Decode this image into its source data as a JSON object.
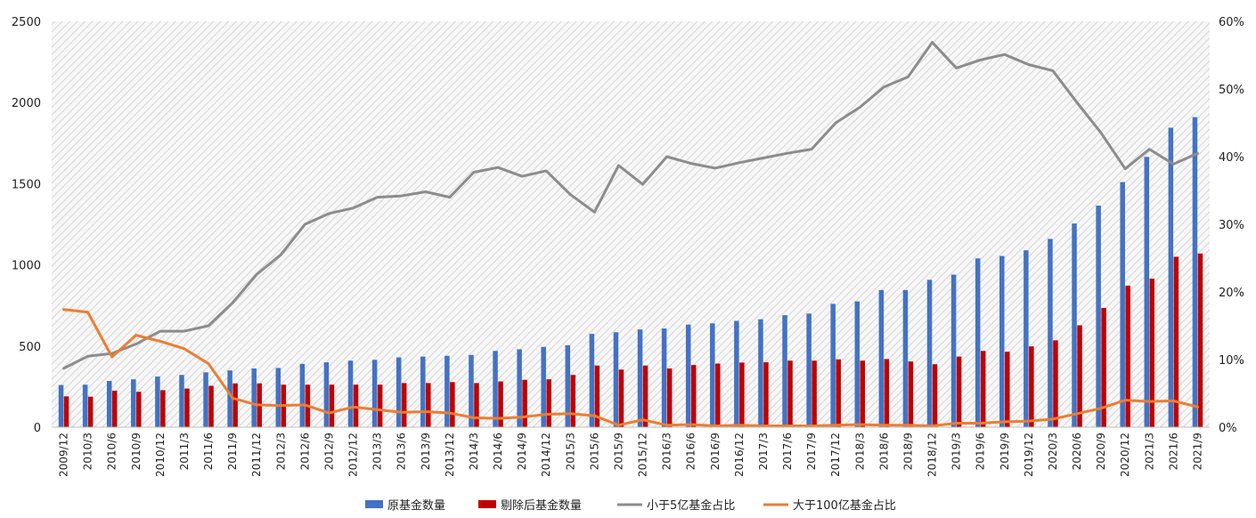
{
  "chart_data": {
    "type": "bar",
    "categories": [
      "2009/12",
      "2010/3",
      "2010/6",
      "2010/9",
      "2010/12",
      "2011/3",
      "2011/6",
      "2011/9",
      "2011/12",
      "2012/3",
      "2012/6",
      "2012/9",
      "2012/12",
      "2013/3",
      "2013/6",
      "2013/9",
      "2013/12",
      "2014/3",
      "2014/6",
      "2014/9",
      "2014/12",
      "2015/3",
      "2015/6",
      "2015/9",
      "2015/12",
      "2016/3",
      "2016/6",
      "2016/9",
      "2016/12",
      "2017/3",
      "2017/6",
      "2017/9",
      "2017/12",
      "2018/3",
      "2018/6",
      "2018/9",
      "2018/12",
      "2019/3",
      "2019/6",
      "2019/9",
      "2019/12",
      "2020/3",
      "2020/6",
      "2020/9",
      "2020/12",
      "2021/3",
      "2021/6",
      "2021/9"
    ],
    "ylim_left": [
      0,
      2500
    ],
    "yticks_left": [
      "0",
      "500",
      "1000",
      "1500",
      "2000",
      "2500"
    ],
    "ylim_right": [
      0,
      60
    ],
    "yticks_right": [
      "0%",
      "10%",
      "20%",
      "30%",
      "40%",
      "50%",
      "60%"
    ],
    "grid": false,
    "legend_position": "bottom",
    "series": [
      {
        "name": "原基金数量",
        "type": "bar",
        "axis": "left",
        "color": "#4472C4",
        "values": [
          260,
          262,
          285,
          295,
          312,
          322,
          338,
          350,
          362,
          365,
          390,
          400,
          410,
          415,
          430,
          435,
          440,
          445,
          470,
          480,
          495,
          505,
          575,
          585,
          602,
          608,
          632,
          640,
          655,
          665,
          690,
          700,
          760,
          775,
          845,
          845,
          908,
          940,
          1040,
          1055,
          1090,
          1160,
          1255,
          1365,
          1510,
          1665,
          1845,
          1910
        ]
      },
      {
        "name": "剔除后基金数量",
        "type": "bar",
        "axis": "left",
        "color": "#C00000",
        "values": [
          190,
          188,
          225,
          218,
          228,
          238,
          255,
          270,
          270,
          262,
          262,
          262,
          262,
          262,
          272,
          272,
          278,
          272,
          282,
          292,
          295,
          322,
          380,
          355,
          380,
          362,
          383,
          392,
          398,
          400,
          410,
          410,
          418,
          410,
          420,
          405,
          388,
          435,
          470,
          465,
          498,
          535,
          628,
          735,
          872,
          915,
          1050,
          1070
        ]
      },
      {
        "name": "小于5亿基金占比",
        "type": "line",
        "axis": "right",
        "color": "#8C8C8C",
        "values": [
          8.7,
          10.5,
          10.9,
          12.3,
          14.2,
          14.2,
          15.0,
          18.4,
          22.6,
          25.5,
          30.0,
          31.6,
          32.4,
          34.0,
          34.2,
          34.8,
          34.0,
          37.7,
          38.4,
          37.1,
          37.9,
          34.4,
          31.8,
          38.7,
          35.9,
          40.0,
          39.0,
          38.3,
          39.1,
          39.8,
          40.5,
          41.1,
          45.0,
          47.3,
          50.3,
          51.8,
          56.9,
          53.1,
          54.3,
          55.1,
          53.6,
          52.7,
          48.0,
          43.5,
          38.2,
          41.1,
          38.9,
          40.5
        ]
      },
      {
        "name": "大于100亿基金占比",
        "type": "line",
        "axis": "right",
        "color": "#ED7D31",
        "values": [
          17.4,
          17.0,
          10.4,
          13.6,
          12.7,
          11.6,
          9.4,
          4.3,
          3.3,
          3.2,
          3.3,
          2.1,
          3.0,
          2.6,
          2.2,
          2.3,
          2.1,
          1.4,
          1.3,
          1.5,
          1.9,
          2.0,
          1.7,
          0.3,
          1.1,
          0.3,
          0.4,
          0.2,
          0.3,
          0.2,
          0.2,
          0.2,
          0.3,
          0.4,
          0.3,
          0.3,
          0.2,
          0.6,
          0.6,
          0.8,
          0.9,
          1.2,
          2.0,
          2.8,
          4.0,
          3.8,
          3.9,
          3.0
        ]
      }
    ]
  }
}
